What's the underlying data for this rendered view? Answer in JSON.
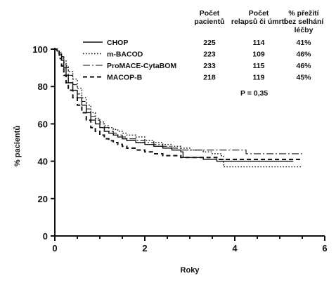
{
  "chart_data": {
    "type": "line",
    "xlabel": "Roky",
    "ylabel": "% pacientů",
    "xlim": [
      0,
      6
    ],
    "ylim": [
      0,
      100
    ],
    "xticks": [
      0,
      2,
      4,
      6
    ],
    "yticks": [
      0,
      20,
      40,
      60,
      80,
      100
    ],
    "grid": false,
    "legend_position": "top-right",
    "table": {
      "headers": [
        [
          "Počet",
          "pacientů"
        ],
        [
          "Počet",
          "relapsů či úmrtí"
        ],
        [
          "% přežití",
          "bez selhání",
          "léčby"
        ]
      ],
      "rows": [
        {
          "series": "CHOP",
          "patients": "225",
          "events": "114",
          "survival": "41%"
        },
        {
          "series": "m-BACOD",
          "patients": "223",
          "events": "109",
          "survival": "46%"
        },
        {
          "series": "ProMACE-CytaBOM",
          "patients": "233",
          "events": "115",
          "survival": "46%"
        },
        {
          "series": "MACOP-B",
          "patients": "218",
          "events": "119",
          "survival": "45%"
        }
      ]
    },
    "annotation": "P = 0,35",
    "series": [
      {
        "name": "CHOP",
        "line_style": "solid",
        "points": [
          [
            0,
            100
          ],
          [
            0.05,
            99
          ],
          [
            0.1,
            97
          ],
          [
            0.15,
            94
          ],
          [
            0.2,
            90
          ],
          [
            0.25,
            86
          ],
          [
            0.3,
            82
          ],
          [
            0.4,
            78
          ],
          [
            0.5,
            74
          ],
          [
            0.6,
            70
          ],
          [
            0.7,
            66
          ],
          [
            0.8,
            62
          ],
          [
            0.9,
            60
          ],
          [
            1.0,
            58
          ],
          [
            1.1,
            56
          ],
          [
            1.2,
            55
          ],
          [
            1.3,
            54
          ],
          [
            1.4,
            53
          ],
          [
            1.5,
            52
          ],
          [
            1.6,
            51
          ],
          [
            1.8,
            50
          ],
          [
            2.0,
            49
          ],
          [
            2.2,
            48
          ],
          [
            2.4,
            47
          ],
          [
            2.6,
            46
          ],
          [
            2.8,
            45
          ],
          [
            2.85,
            42
          ],
          [
            3.0,
            42
          ],
          [
            3.3,
            41
          ],
          [
            3.6,
            40
          ],
          [
            4.0,
            40
          ],
          [
            4.5,
            40
          ],
          [
            5.0,
            40
          ],
          [
            5.3,
            40
          ]
        ]
      },
      {
        "name": "m-BACOD",
        "line_style": "dotted",
        "points": [
          [
            0,
            100
          ],
          [
            0.05,
            99
          ],
          [
            0.1,
            98
          ],
          [
            0.15,
            96
          ],
          [
            0.2,
            94
          ],
          [
            0.25,
            91
          ],
          [
            0.3,
            88
          ],
          [
            0.4,
            84
          ],
          [
            0.5,
            79
          ],
          [
            0.6,
            74
          ],
          [
            0.7,
            70
          ],
          [
            0.8,
            66
          ],
          [
            0.9,
            63
          ],
          [
            1.0,
            61
          ],
          [
            1.1,
            59
          ],
          [
            1.2,
            58
          ],
          [
            1.3,
            57
          ],
          [
            1.4,
            56
          ],
          [
            1.5,
            55
          ],
          [
            1.6,
            54
          ],
          [
            1.8,
            53
          ],
          [
            2.0,
            51
          ],
          [
            2.2,
            50
          ],
          [
            2.4,
            49
          ],
          [
            2.6,
            48
          ],
          [
            2.8,
            47
          ],
          [
            3.0,
            46
          ],
          [
            3.3,
            45
          ],
          [
            3.5,
            44
          ],
          [
            3.7,
            43
          ],
          [
            3.75,
            37
          ],
          [
            3.9,
            37
          ],
          [
            4.2,
            37
          ],
          [
            4.6,
            37
          ],
          [
            5.0,
            37
          ],
          [
            5.5,
            37
          ]
        ]
      },
      {
        "name": "ProMACE-CytaBOM",
        "line_style": "dashdot",
        "points": [
          [
            0,
            100
          ],
          [
            0.05,
            99
          ],
          [
            0.1,
            98
          ],
          [
            0.15,
            96
          ],
          [
            0.2,
            93
          ],
          [
            0.25,
            90
          ],
          [
            0.3,
            86
          ],
          [
            0.4,
            81
          ],
          [
            0.5,
            76
          ],
          [
            0.6,
            72
          ],
          [
            0.7,
            68
          ],
          [
            0.8,
            64
          ],
          [
            0.9,
            62
          ],
          [
            1.0,
            60
          ],
          [
            1.1,
            58
          ],
          [
            1.2,
            56
          ],
          [
            1.3,
            55
          ],
          [
            1.4,
            54
          ],
          [
            1.5,
            53
          ],
          [
            1.6,
            52
          ],
          [
            1.8,
            51
          ],
          [
            2.0,
            50
          ],
          [
            2.2,
            49
          ],
          [
            2.4,
            48
          ],
          [
            2.6,
            47
          ],
          [
            2.8,
            46
          ],
          [
            3.0,
            46
          ],
          [
            3.5,
            46
          ],
          [
            4.0,
            46
          ],
          [
            4.2,
            46
          ],
          [
            4.25,
            44
          ],
          [
            4.6,
            44
          ],
          [
            5.0,
            44
          ],
          [
            5.5,
            44
          ]
        ]
      },
      {
        "name": "MACOP-B",
        "line_style": "dashed",
        "points": [
          [
            0,
            100
          ],
          [
            0.05,
            98
          ],
          [
            0.1,
            95
          ],
          [
            0.15,
            91
          ],
          [
            0.2,
            86
          ],
          [
            0.25,
            82
          ],
          [
            0.3,
            78
          ],
          [
            0.4,
            74
          ],
          [
            0.5,
            70
          ],
          [
            0.6,
            66
          ],
          [
            0.7,
            62
          ],
          [
            0.8,
            58
          ],
          [
            0.9,
            56
          ],
          [
            1.0,
            54
          ],
          [
            1.1,
            52
          ],
          [
            1.2,
            51
          ],
          [
            1.3,
            50
          ],
          [
            1.4,
            49
          ],
          [
            1.5,
            48
          ],
          [
            1.6,
            47
          ],
          [
            1.8,
            46
          ],
          [
            2.0,
            45
          ],
          [
            2.2,
            44
          ],
          [
            2.4,
            43
          ],
          [
            2.6,
            43
          ],
          [
            2.8,
            42
          ],
          [
            3.0,
            42
          ],
          [
            3.3,
            42
          ],
          [
            3.6,
            41
          ],
          [
            4.0,
            41
          ],
          [
            4.5,
            41
          ],
          [
            5.0,
            41
          ],
          [
            5.5,
            41
          ]
        ]
      }
    ]
  }
}
